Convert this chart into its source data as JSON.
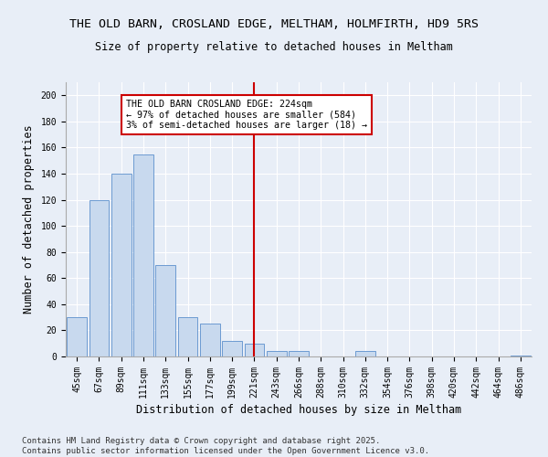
{
  "title_line1": "THE OLD BARN, CROSLAND EDGE, MELTHAM, HOLMFIRTH, HD9 5RS",
  "title_line2": "Size of property relative to detached houses in Meltham",
  "xlabel": "Distribution of detached houses by size in Meltham",
  "ylabel": "Number of detached properties",
  "categories": [
    "45sqm",
    "67sqm",
    "89sqm",
    "111sqm",
    "133sqm",
    "155sqm",
    "177sqm",
    "199sqm",
    "221sqm",
    "243sqm",
    "266sqm",
    "288sqm",
    "310sqm",
    "332sqm",
    "354sqm",
    "376sqm",
    "398sqm",
    "420sqm",
    "442sqm",
    "464sqm",
    "486sqm"
  ],
  "values": [
    30,
    120,
    140,
    155,
    70,
    30,
    25,
    12,
    10,
    4,
    4,
    0,
    0,
    4,
    0,
    0,
    0,
    0,
    0,
    0,
    1
  ],
  "bar_color": "#c8d9ee",
  "bar_edge_color": "#5b8fcc",
  "vline_color": "#cc0000",
  "annotation_text": "THE OLD BARN CROSLAND EDGE: 224sqm\n← 97% of detached houses are smaller (584)\n3% of semi-detached houses are larger (18) →",
  "annotation_box_color": "#cc0000",
  "annotation_box_facecolor": "#ffffff",
  "ylim": [
    0,
    210
  ],
  "yticks": [
    0,
    20,
    40,
    60,
    80,
    100,
    120,
    140,
    160,
    180,
    200
  ],
  "footer_text": "Contains HM Land Registry data © Crown copyright and database right 2025.\nContains public sector information licensed under the Open Government Licence v3.0.",
  "bg_color": "#e8eef7",
  "plot_bg_color": "#e8eef7",
  "title_fontsize": 9.5,
  "subtitle_fontsize": 8.5,
  "tick_fontsize": 7,
  "label_fontsize": 8.5,
  "footer_fontsize": 6.5
}
